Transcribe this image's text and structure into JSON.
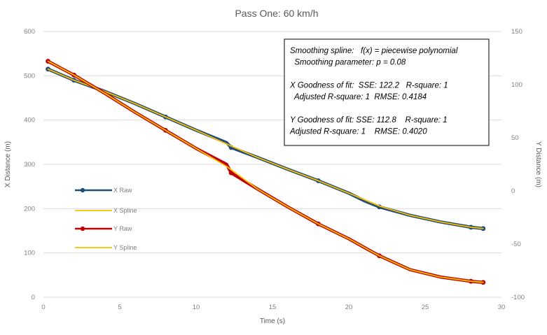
{
  "chart_data": {
    "type": "line",
    "title": "Pass One: 60 km/h",
    "xlabel": "Time (s)",
    "ylabel": "X Distance (m)",
    "y2label": "Y Distance (m)",
    "xlim": [
      0,
      30
    ],
    "ylim": [
      0,
      600
    ],
    "y2lim": [
      -100,
      150
    ],
    "xticks": [
      "0",
      "5",
      "10",
      "15",
      "20",
      "25",
      "30"
    ],
    "yticks": [
      "0",
      "100",
      "200",
      "300",
      "400",
      "500",
      "600"
    ],
    "y2ticks": [
      "-100",
      "-50",
      "0",
      "50",
      "100",
      "150"
    ],
    "grid": true,
    "legend_position": "left",
    "series": [
      {
        "name": "X Raw",
        "axis": "left",
        "color": "#1f4e79",
        "style": "line-marker",
        "x": [
          0.3,
          2,
          4,
          6,
          8,
          10,
          12,
          12.3,
          14,
          16,
          18,
          20,
          21,
          22,
          24,
          26,
          28,
          28.8
        ],
        "y": [
          515,
          490,
          465,
          437,
          407,
          377,
          349,
          338,
          316,
          289,
          263,
          235,
          218,
          204,
          185,
          170,
          158,
          155
        ]
      },
      {
        "name": "X Spline",
        "axis": "left",
        "color": "#ffc000",
        "style": "line",
        "x": [
          0.3,
          2,
          4,
          6,
          8,
          10,
          12,
          14,
          16,
          18,
          20,
          22,
          24,
          26,
          28,
          28.8
        ],
        "y": [
          515,
          490,
          465,
          437,
          407,
          377,
          346,
          316,
          289,
          263,
          235,
          206,
          185,
          170,
          158,
          155
        ]
      },
      {
        "name": "Y Raw",
        "axis": "right",
        "color": "#c00000",
        "style": "line-marker",
        "x": [
          0.3,
          2,
          4,
          6,
          8,
          10,
          12,
          12.3,
          14,
          16,
          18,
          20,
          21,
          22,
          24,
          26,
          28,
          28.8
        ],
        "y": [
          122,
          109,
          92,
          74,
          57,
          40,
          25,
          17,
          2,
          -15,
          -31,
          -45,
          -53,
          -61,
          -74,
          -81,
          -85,
          -86
        ]
      },
      {
        "name": "Y Spline",
        "axis": "right",
        "color": "#ffc000",
        "style": "line",
        "x": [
          0.3,
          2,
          4,
          6,
          8,
          10,
          12,
          14,
          16,
          18,
          20,
          22,
          24,
          26,
          28,
          28.8
        ],
        "y": [
          122,
          109,
          92,
          74,
          57,
          40,
          23,
          2,
          -15,
          -31,
          -45,
          -61,
          -74,
          -81,
          -85,
          -86
        ]
      }
    ],
    "annotation": [
      "Smoothing spline:   f(x) = piecewise polynomial",
      "  Smoothing parameter: p = 0.08",
      "",
      "X Goodness of fit:  SSE: 122.2   R-square: 1",
      "  Adjusted R-square: 1  RMSE: 0.4184",
      "",
      "Y Goodness of fit: SSE: 112.8    R-square: 1",
      "Adjusted R-square: 1    RMSE: 0.4020"
    ]
  }
}
